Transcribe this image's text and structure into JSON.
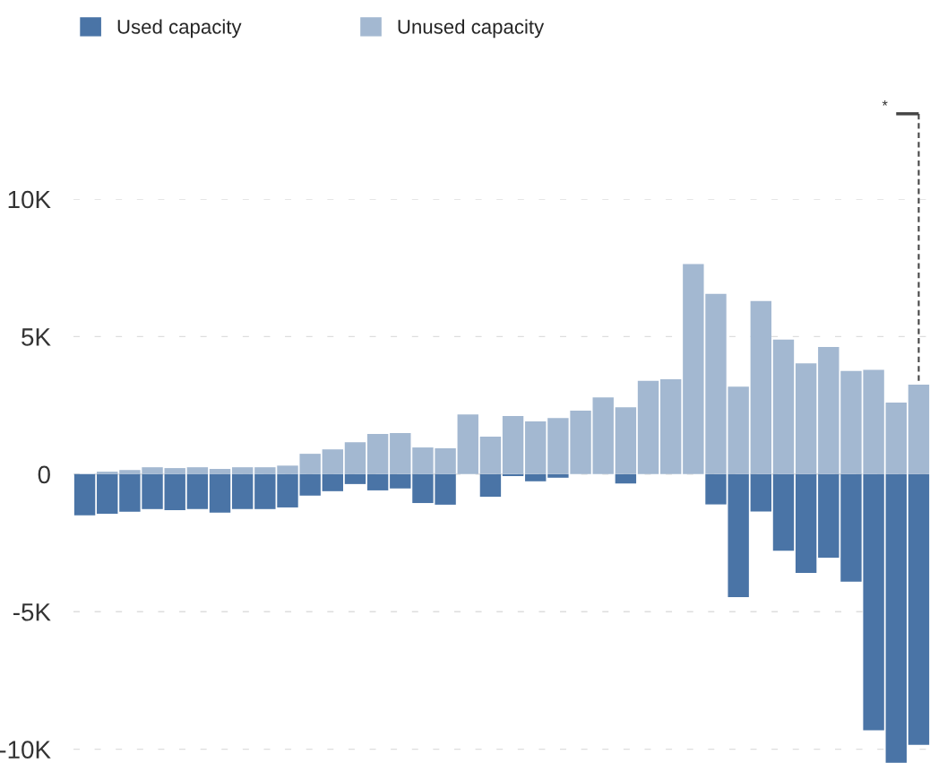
{
  "chart_data": {
    "type": "bar",
    "categories": [
      null,
      null,
      null,
      null,
      null,
      null,
      null,
      null,
      null,
      null,
      null,
      null,
      null,
      null,
      null,
      null,
      null,
      null,
      null,
      null,
      null,
      null,
      null,
      null,
      null,
      null,
      null,
      null,
      null,
      null,
      null,
      null,
      null,
      null,
      null,
      null,
      null,
      null
    ],
    "series": [
      {
        "name": "Used capacity",
        "color": "#4a74a6",
        "values": [
          -1500,
          -1440,
          -1370,
          -1270,
          -1310,
          -1270,
          -1400,
          -1270,
          -1270,
          -1210,
          -780,
          -620,
          -360,
          -590,
          -520,
          -1050,
          -1110,
          null,
          -820,
          -70,
          -260,
          -130,
          null,
          null,
          -340,
          null,
          null,
          null,
          -1100,
          -4470,
          -1360,
          -2780,
          -3590,
          -3040,
          -3910,
          -9310,
          -10490,
          -9840
        ]
      },
      {
        "name": "Unused capacity",
        "color": "#a3b8d1",
        "values": [
          null,
          90,
          150,
          250,
          220,
          250,
          190,
          250,
          250,
          310,
          740,
          900,
          1160,
          1460,
          1490,
          970,
          940,
          2170,
          1360,
          2110,
          1920,
          2040,
          2310,
          2790,
          2430,
          3390,
          3450,
          7640,
          6550,
          3180,
          6290,
          4890,
          4030,
          4620,
          3750,
          3790,
          2600,
          3250
        ]
      }
    ],
    "ylim": [
      -10500,
      10000
    ],
    "stacked": true,
    "yticks": [
      {
        "value": -10000,
        "label": "-10K"
      },
      {
        "value": -5000,
        "label": "-5K"
      },
      0,
      {
        "value": 5000,
        "label": "5K"
      },
      {
        "value": 10000,
        "label": "10K"
      }
    ],
    "grid": "y",
    "legend": "top left",
    "tick_labels": "y",
    "annotations": [
      "*"
    ]
  }
}
